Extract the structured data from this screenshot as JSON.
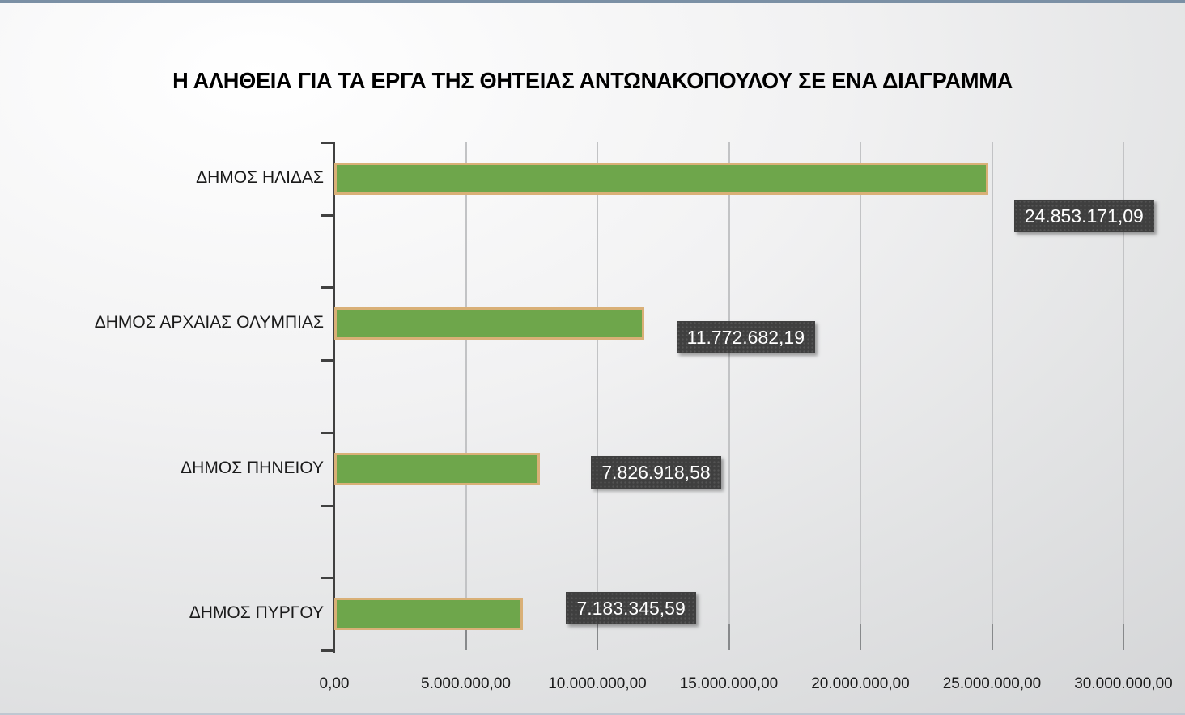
{
  "chart_data": {
    "type": "bar",
    "orientation": "horizontal",
    "title": "Η ΑΛΗΘΕΙΑ ΓΙΑ ΤΑ ΕΡΓΑ ΤΗΣ ΘΗΤΕΙΑΣ ΑΝΤΩΝΑΚΟΠΟΥΛΟΥ ΣΕ ΕΝΑ ΔΙΑΓΡΑΜΜΑ",
    "categories": [
      "ΔΗΜΟΣ ΗΛΙΔΑΣ",
      "ΔΗΜΟΣ ΑΡΧΑΙΑΣ ΟΛΥΜΠΙΑΣ",
      "ΔΗΜΟΣ ΠΗΝΕΙΟΥ",
      "ΔΗΜΟΣ ΠΥΡΓΟΥ"
    ],
    "values": [
      24853171.09,
      11772682.19,
      7826918.58,
      7183345.59
    ],
    "data_labels": [
      "24.853.171,09",
      "11.772.682,19",
      "7.826.918,58",
      "7.183.345,59"
    ],
    "xlabel": "",
    "ylabel": "",
    "xlim": [
      0,
      30000000
    ],
    "x_ticks": {
      "values": [
        0,
        5000000,
        10000000,
        15000000,
        20000000,
        25000000,
        30000000
      ],
      "labels": [
        "0,00",
        "5.000.000,00",
        "10.000.000,00",
        "15.000.000,00",
        "20.000.000,00",
        "25.000.000,00",
        "30.000.000,00"
      ]
    },
    "grid": true,
    "legend": false,
    "colors": {
      "bar_fill": "#6EA64B",
      "bar_border": "#D9B077",
      "label_box": "#3F3F3F",
      "label_text": "#FFFFFF",
      "axis": "#404040",
      "gridline": "#C2C3C5"
    }
  }
}
